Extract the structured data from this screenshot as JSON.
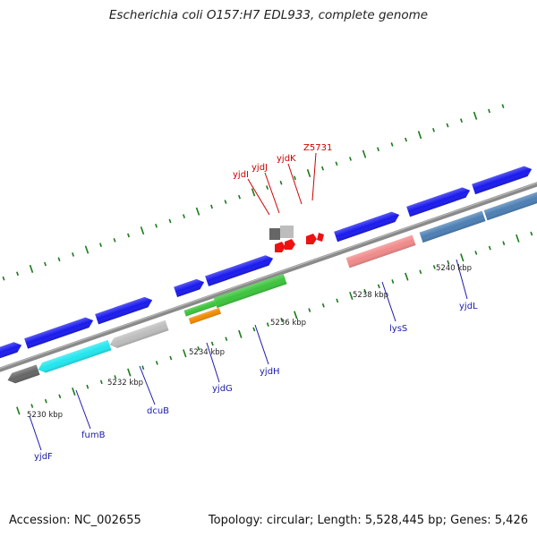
{
  "title": "Escherichia coli O157:H7 EDL933, complete genome",
  "footer": {
    "accession": "Accession: NC_002655",
    "topology": "Topology: circular; Length: 5,528,445 bp; Genes: 5,426"
  },
  "colors": {
    "backbone": "#8a8a8a",
    "ticks": "#1b7a1b",
    "forward_gene": "#1a1aee",
    "label_red": "#cc0000",
    "label_blue": "#1a1aaa",
    "dark_gray": "#666666",
    "light_gray": "#bdbdbd",
    "cyan": "#22e6ee",
    "green": "#3cc43c",
    "orange": "#f08a00",
    "pink": "#f08a8a",
    "steel_blue": "#4c7fb4"
  },
  "scale_labels": [
    "5230 kbp",
    "5232 kbp",
    "5234 kbp",
    "5236 kbp",
    "5238 kbp",
    "5240 kbp"
  ],
  "gene_labels": [
    {
      "name": "yjdI",
      "color": "red"
    },
    {
      "name": "yjdJ",
      "color": "red"
    },
    {
      "name": "yjdK",
      "color": "red"
    },
    {
      "name": "Z5731",
      "color": "red"
    },
    {
      "name": "yjdF",
      "color": "blue"
    },
    {
      "name": "fumB",
      "color": "blue"
    },
    {
      "name": "dcuB",
      "color": "blue"
    },
    {
      "name": "yjdG",
      "color": "blue"
    },
    {
      "name": "yjdH",
      "color": "blue"
    },
    {
      "name": "lysS",
      "color": "blue"
    },
    {
      "name": "yjdL",
      "color": "blue"
    }
  ]
}
